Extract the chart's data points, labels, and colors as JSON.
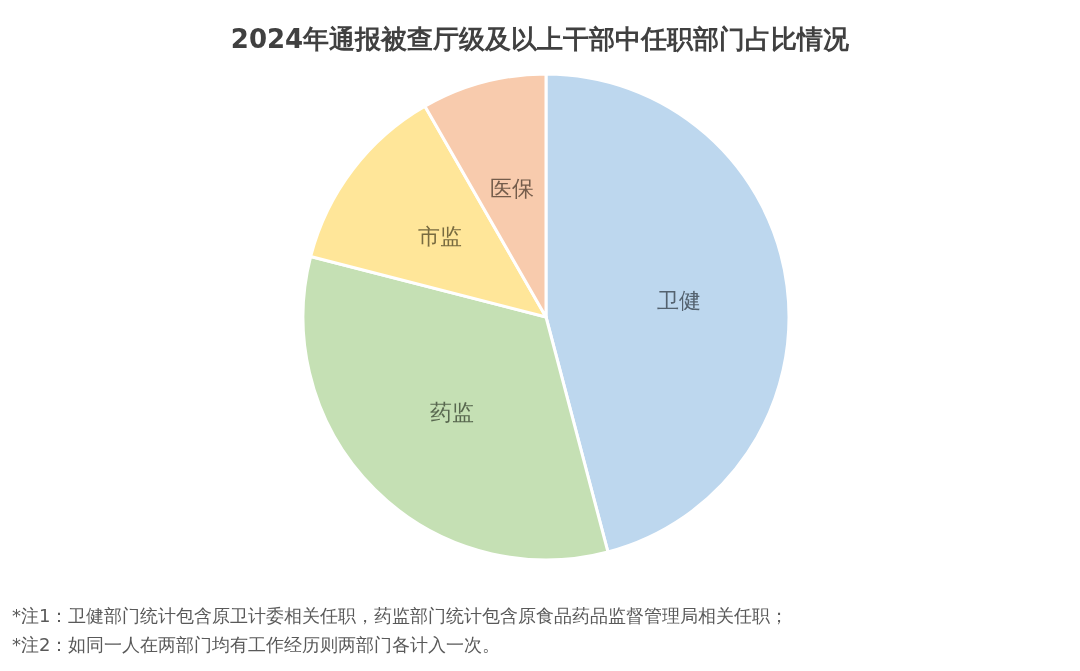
{
  "chart_data": {
    "type": "pie",
    "title": "2024年通报被查厅级及以上干部中任职部门占比情况",
    "categories": [
      "卫健",
      "药监",
      "市监",
      "医保"
    ],
    "values": [
      45.9,
      33.1,
      12.7,
      8.3
    ],
    "colors": [
      "#bdd7ee",
      "#c5e0b4",
      "#ffe699",
      "#f8cbad"
    ],
    "annotations": [
      "*注1：卫健部门统计包含原卫计委相关任职，药监部门统计包含原食品药品监督管理局相关任职；",
      "*注2：如同一人在两部门均有工作经历则两部门各计入一次。"
    ]
  }
}
